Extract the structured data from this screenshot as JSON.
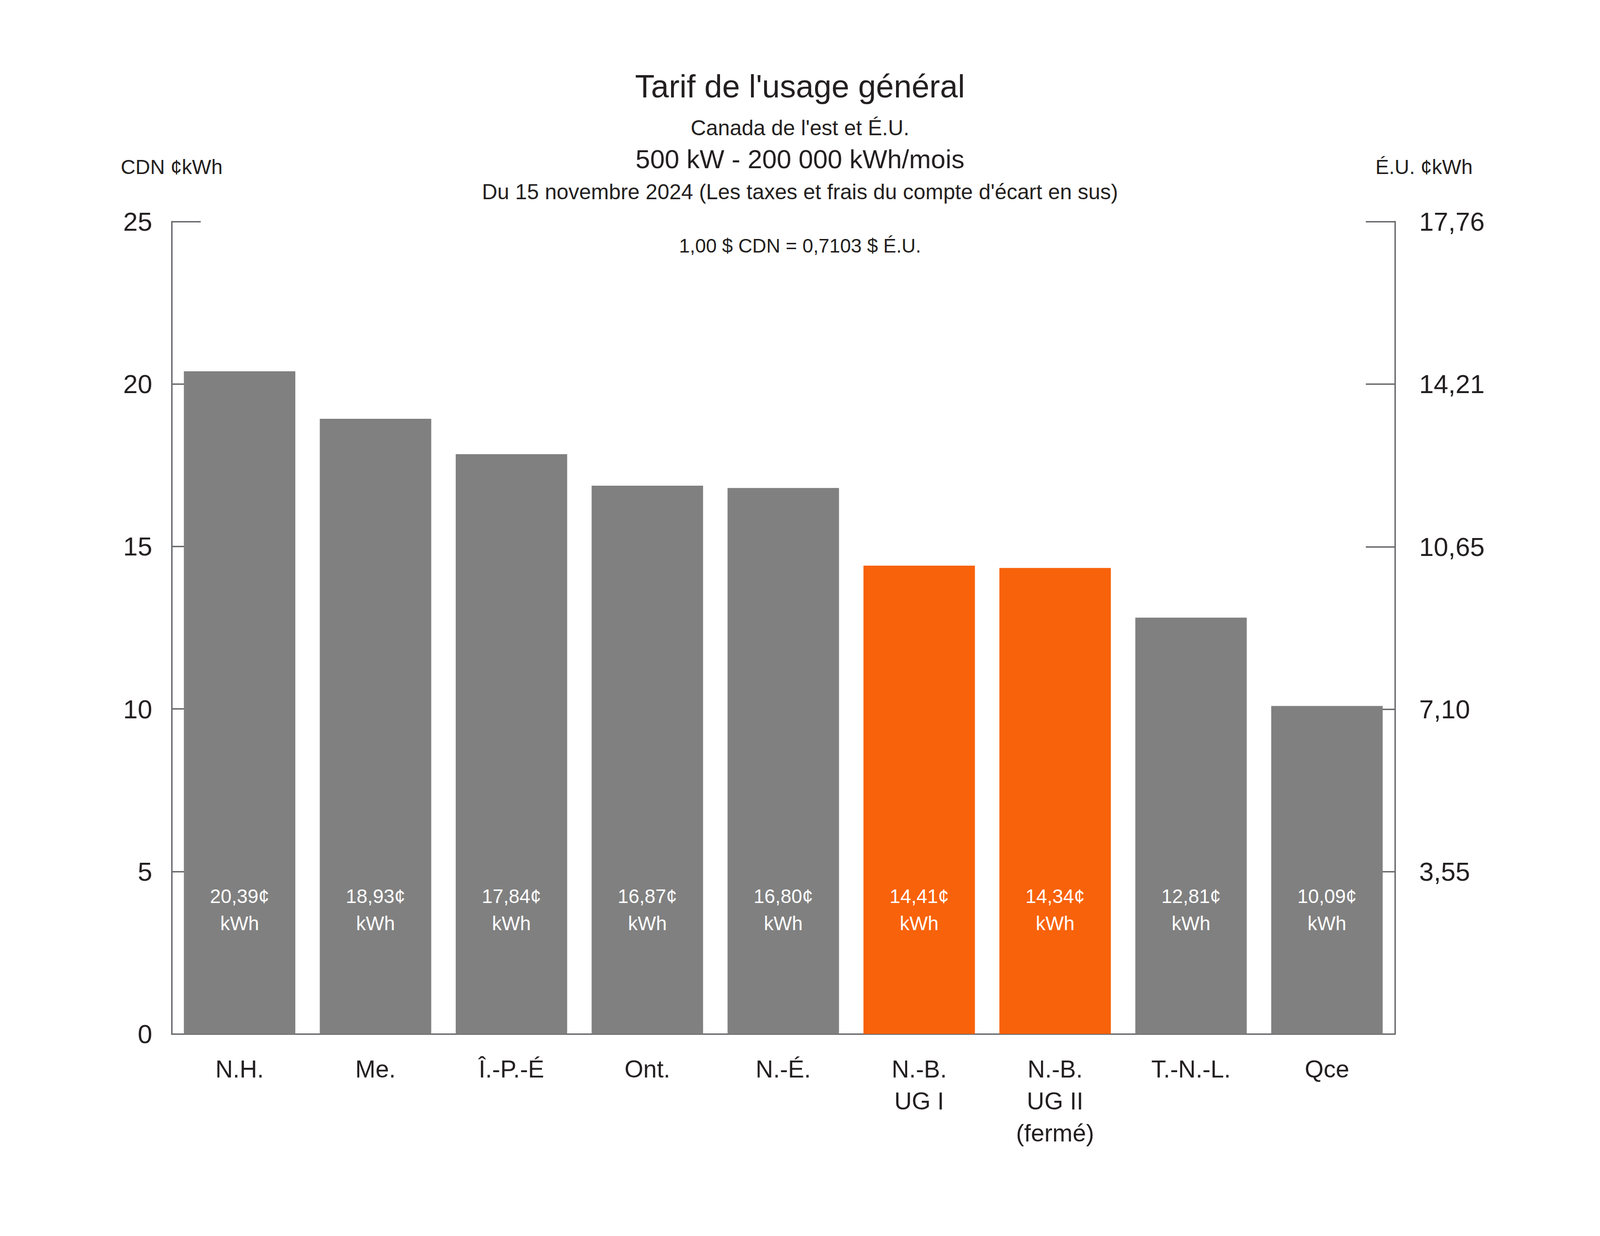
{
  "chart_data": {
    "type": "bar",
    "title": "Tarif de l'usage général",
    "subtitle": [
      "Canada de l'est et É.U.",
      "500 kW - 200 000 kWh/mois",
      "Du 15 novembre 2024 (Les taxes et frais du compte d'écart en sus)"
    ],
    "annotations": [
      "1,00 $ CDN = 0,7103 $ É.U."
    ],
    "y_label": "CDN ¢kWh",
    "y2_label": "É.U. ¢kWh",
    "categories": [
      "N.H.",
      "Me.",
      "Î.-P.-É",
      "Ont.",
      "N.-É.",
      "N.-B.\nUG I",
      "N.-B.\nUG II\n(fermé)",
      "T.-N.-L.",
      "Qce"
    ],
    "values": [
      20.39,
      18.93,
      17.84,
      16.87,
      16.8,
      14.41,
      14.34,
      12.81,
      10.09
    ],
    "value_labels": [
      "20,39¢\nkWh",
      "18,93¢\nkWh",
      "17,84¢\nkWh",
      "16,87¢\nkWh",
      "16,80¢\nkWh",
      "14,41¢\nkWh",
      "14,34¢\nkWh",
      "12,81¢\nkWh",
      "10,09¢\nkWh"
    ],
    "colors": [
      "#808080",
      "#808080",
      "#808080",
      "#808080",
      "#808080",
      "#f8620a",
      "#f8620a",
      "#808080",
      "#808080"
    ],
    "ylim": [
      0,
      25
    ],
    "yticks": [
      0,
      5,
      10,
      15,
      20,
      25
    ],
    "y2lim": [
      0,
      17.76
    ],
    "y2ticks": [
      {
        "value": 3.55,
        "label": "3,55"
      },
      {
        "value": 7.1,
        "label": "7,10"
      },
      {
        "value": 10.65,
        "label": "10,65"
      },
      {
        "value": 14.21,
        "label": "14,21"
      },
      {
        "value": 17.76,
        "label": "17,76"
      }
    ],
    "grid": false,
    "data_labels": true
  }
}
